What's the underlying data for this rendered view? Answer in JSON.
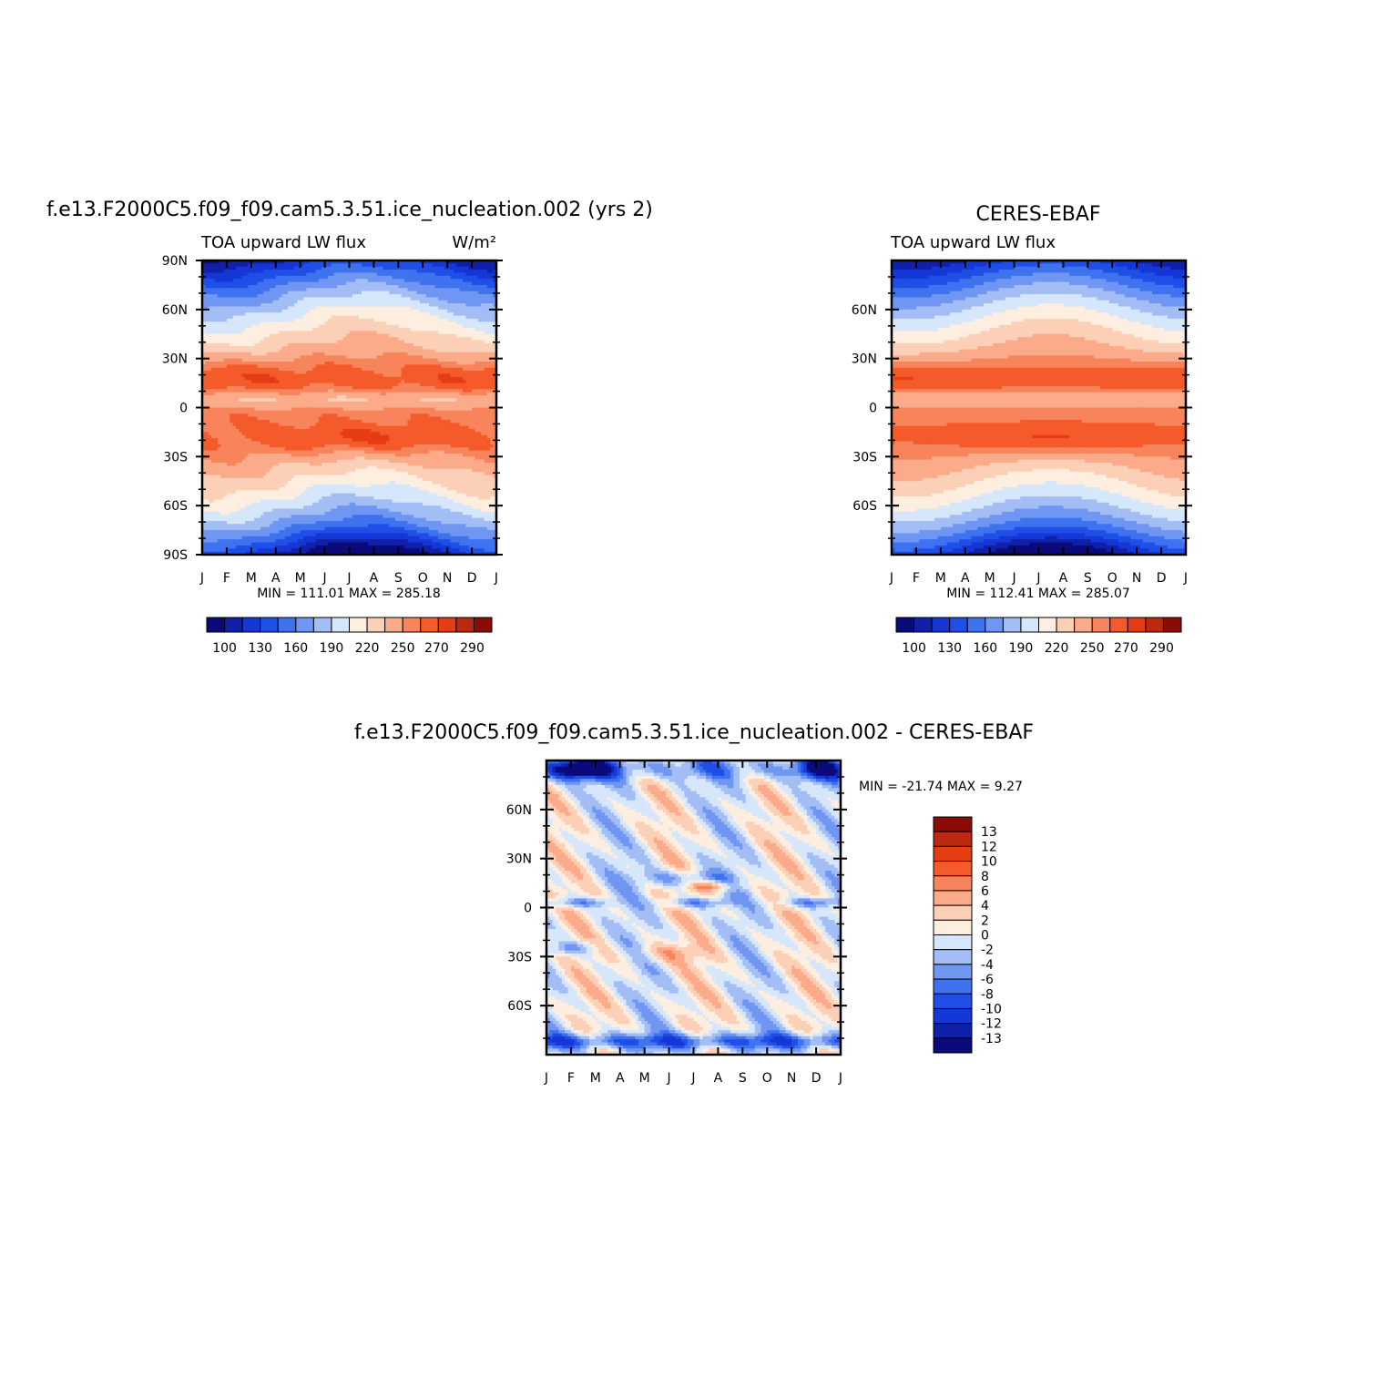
{
  "colors": {
    "abs_levels_colors": [
      "#0a0a7a",
      "#1020a8",
      "#1537d6",
      "#1f4fe6",
      "#3f72ee",
      "#6e96f2",
      "#a3bdf5",
      "#d6e6fb",
      "#fdeee0",
      "#fcd0b6",
      "#fbab8a",
      "#f8845c",
      "#f45a2a",
      "#e53c14",
      "#bb2a0e",
      "#8a0c06"
    ],
    "diff_levels_colors": [
      "#0a0a7a",
      "#1020a8",
      "#1537d6",
      "#1f4fe6",
      "#3f72ee",
      "#6e96f2",
      "#a3bdf5",
      "#d6e6fb",
      "#fdeee0",
      "#fcd0b6",
      "#fbab8a",
      "#f8845c",
      "#f45a2a",
      "#e53c14",
      "#bb2a0e",
      "#8a0c06"
    ]
  },
  "chart_data": [
    {
      "type": "heatmap",
      "title": "f.e13.F2000C5.f09_f09.cam5.3.51.ice_nucleation.002 (yrs 2)",
      "subtitle_left": "TOA upward LW flux",
      "subtitle_right": "W/m²",
      "x_ticks": [
        "J",
        "F",
        "M",
        "A",
        "M",
        "J",
        "J",
        "A",
        "S",
        "O",
        "N",
        "D",
        "J"
      ],
      "y_ticks": [
        "90N",
        "60N",
        "30N",
        "0",
        "30S",
        "60S",
        "90S"
      ],
      "ylim": [
        -90,
        90
      ],
      "stats": "MIN = 111.01 MAX = 285.18",
      "levels": [
        100,
        115,
        130,
        145,
        160,
        175,
        190,
        205,
        220,
        235,
        250,
        260,
        270,
        280,
        290
      ],
      "colorbar_labels": [
        "100",
        "130",
        "160",
        "190",
        "220",
        "250",
        "270",
        "290"
      ],
      "model": "model"
    },
    {
      "type": "heatmap",
      "title": "CERES-EBAF",
      "subtitle_left": "TOA upward LW flux",
      "x_ticks": [
        "J",
        "F",
        "M",
        "A",
        "M",
        "J",
        "J",
        "A",
        "S",
        "O",
        "N",
        "D",
        "J"
      ],
      "y_ticks": [
        "60N",
        "30N",
        "0",
        "30S",
        "60S"
      ],
      "ylim": [
        -90,
        90
      ],
      "stats": "MIN = 112.41 MAX = 285.07",
      "levels": [
        100,
        115,
        130,
        145,
        160,
        175,
        190,
        205,
        220,
        235,
        250,
        260,
        270,
        280,
        290
      ],
      "colorbar_labels": [
        "100",
        "130",
        "160",
        "190",
        "220",
        "250",
        "270",
        "290"
      ],
      "model": "obs"
    },
    {
      "type": "heatmap",
      "title": "f.e13.F2000C5.f09_f09.cam5.3.51.ice_nucleation.002 - CERES-EBAF",
      "x_ticks": [
        "J",
        "F",
        "M",
        "A",
        "M",
        "J",
        "J",
        "A",
        "S",
        "O",
        "N",
        "D",
        "J"
      ],
      "y_ticks": [
        "60N",
        "30N",
        "0",
        "30S",
        "60S"
      ],
      "ylim": [
        -90,
        90
      ],
      "stats": "MIN = -21.74 MAX =    9.27",
      "levels": [
        -13,
        -12,
        -10,
        -8,
        -6,
        -4,
        -2,
        0,
        2,
        4,
        6,
        8,
        10,
        12,
        13
      ],
      "colorbar_labels": [
        "13",
        "12",
        "10",
        "8",
        "6",
        "4",
        "2",
        "0",
        "-2",
        "-4",
        "-6",
        "-8",
        "-10",
        "-12",
        "-13"
      ],
      "model": "diff"
    }
  ]
}
